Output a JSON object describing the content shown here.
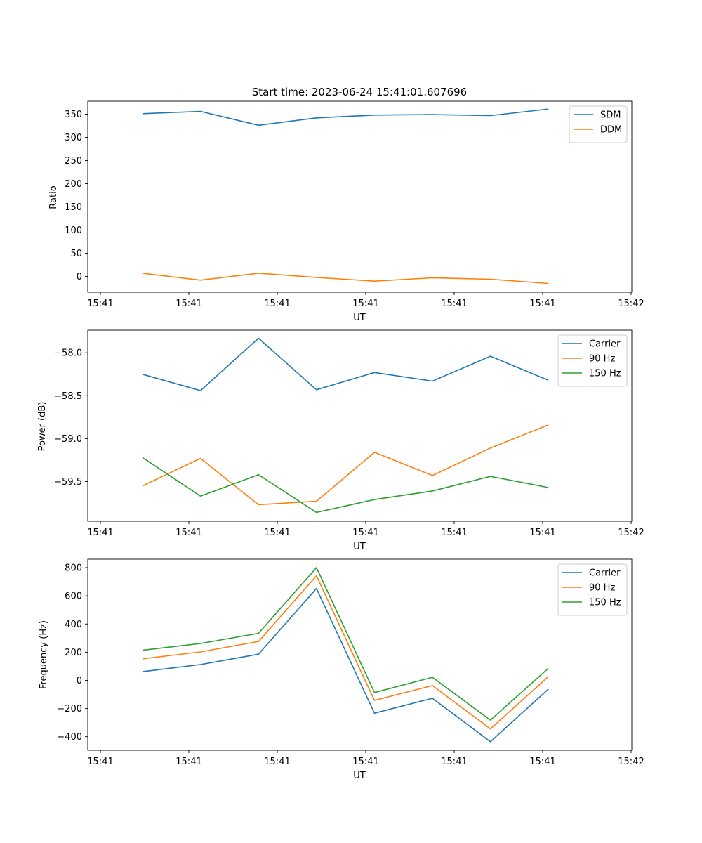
{
  "chart_data": [
    {
      "type": "line",
      "title": "Start time: 2023-06-24 15:41:01.607696",
      "xlabel": "UT",
      "ylabel": "Ratio",
      "xticks": [
        "15:41",
        "15:41",
        "15:41",
        "15:41",
        "15:41",
        "15:41",
        "15:42"
      ],
      "yticks": [
        0,
        50,
        100,
        150,
        200,
        250,
        300,
        350
      ],
      "ylim": [
        -34,
        378
      ],
      "grid": false,
      "legend": "top-right",
      "series": [
        {
          "name": "SDM",
          "color": "#1f77b4",
          "values": [
            351,
            356,
            326,
            342,
            348,
            349,
            347,
            361
          ]
        },
        {
          "name": "DDM",
          "color": "#ff7f0e",
          "values": [
            7,
            -8,
            7,
            -2,
            -10,
            -3,
            -6,
            -15
          ]
        }
      ]
    },
    {
      "type": "line",
      "title": "",
      "xlabel": "UT",
      "ylabel": "Power (dB)",
      "xticks": [
        "15:41",
        "15:41",
        "15:41",
        "15:41",
        "15:41",
        "15:41",
        "15:42"
      ],
      "yticks": [
        "−58.0",
        "−58.5",
        "−59.0",
        "−59.5"
      ],
      "ytick_values": [
        -58.0,
        -58.5,
        -59.0,
        -59.5
      ],
      "ylim": [
        -59.963,
        -57.736
      ],
      "grid": false,
      "legend": "top-right",
      "series": [
        {
          "name": "Carrier",
          "color": "#1f77b4",
          "values": [
            -58.25,
            -58.44,
            -57.83,
            -58.43,
            -58.23,
            -58.33,
            -58.04,
            -58.32
          ]
        },
        {
          "name": "90 Hz",
          "color": "#ff7f0e",
          "values": [
            -59.55,
            -59.23,
            -59.77,
            -59.73,
            -59.16,
            -59.43,
            -59.11,
            -58.84
          ]
        },
        {
          "name": "150 Hz",
          "color": "#2ca02c",
          "values": [
            -59.22,
            -59.67,
            -59.42,
            -59.86,
            -59.71,
            -59.61,
            -59.44,
            -59.57
          ]
        }
      ]
    },
    {
      "type": "line",
      "title": "",
      "xlabel": "UT",
      "ylabel": "Frequency (Hz)",
      "xticks": [
        "15:41",
        "15:41",
        "15:41",
        "15:41",
        "15:41",
        "15:41",
        "15:42"
      ],
      "yticks": [
        "−400",
        "−200",
        "0",
        "200",
        "400",
        "600",
        "800"
      ],
      "ytick_values": [
        -400,
        -200,
        0,
        200,
        400,
        600,
        800
      ],
      "ylim": [
        -496,
        860
      ],
      "grid": false,
      "legend": "top-right",
      "series": [
        {
          "name": "Carrier",
          "color": "#1f77b4",
          "values": [
            62,
            112,
            186,
            652,
            -233,
            -127,
            -435,
            -62
          ]
        },
        {
          "name": "90 Hz",
          "color": "#ff7f0e",
          "values": [
            153,
            202,
            276,
            742,
            -142,
            -37,
            -344,
            27
          ]
        },
        {
          "name": "150 Hz",
          "color": "#2ca02c",
          "values": [
            214,
            262,
            334,
            800,
            -86,
            22,
            -282,
            86
          ]
        }
      ]
    }
  ]
}
